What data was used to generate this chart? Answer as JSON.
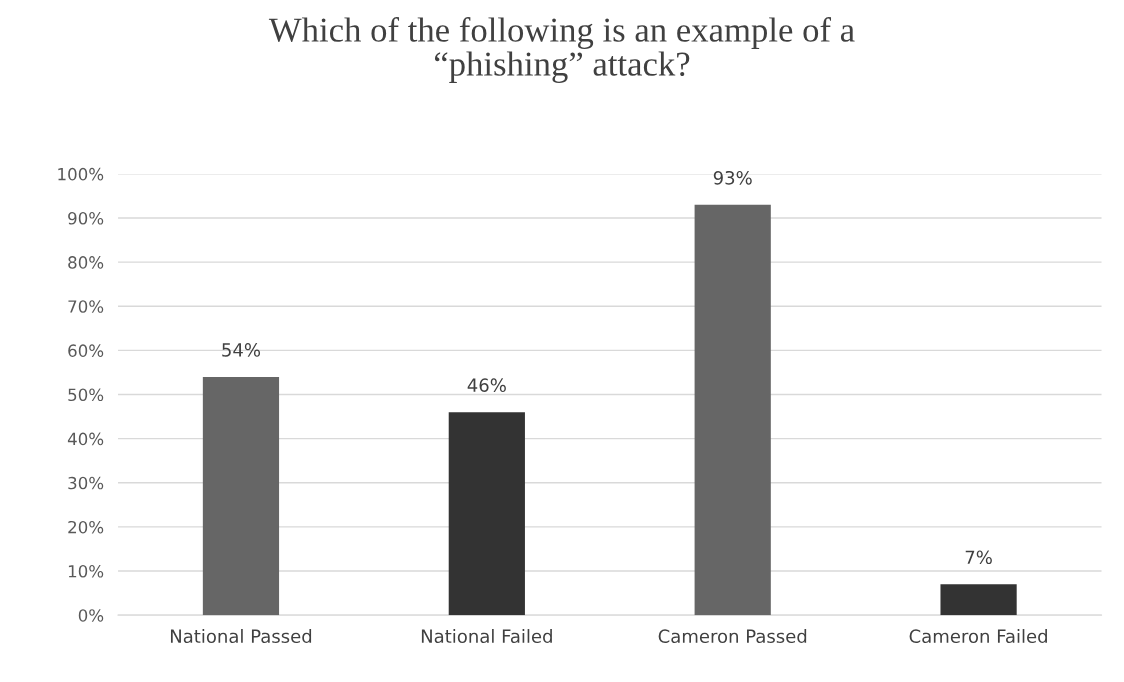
{
  "chart_data": {
    "type": "bar",
    "title": "Which of the following is an example of a\n“phishing” attack?",
    "categories": [
      "National Passed",
      "National Failed",
      "Cameron Passed",
      "Cameron Failed"
    ],
    "values": [
      54,
      46,
      93,
      7
    ],
    "colors": [
      "#666666",
      "#333333",
      "#666666",
      "#333333"
    ],
    "value_labels": [
      "54%",
      "46%",
      "93%",
      "7%"
    ],
    "ylim": [
      0,
      100
    ],
    "yticks": [
      {
        "value": 0,
        "label": "0%"
      },
      {
        "value": 10,
        "label": "10%"
      },
      {
        "value": 20,
        "label": "20%"
      },
      {
        "value": 30,
        "label": "30%"
      },
      {
        "value": 40,
        "label": "40%"
      },
      {
        "value": 50,
        "label": "50%"
      },
      {
        "value": 60,
        "label": "60%"
      },
      {
        "value": 70,
        "label": "70%"
      },
      {
        "value": 80,
        "label": "80%"
      },
      {
        "value": 90,
        "label": "90%"
      },
      {
        "value": 100,
        "label": "100%"
      }
    ],
    "grid": "y"
  }
}
